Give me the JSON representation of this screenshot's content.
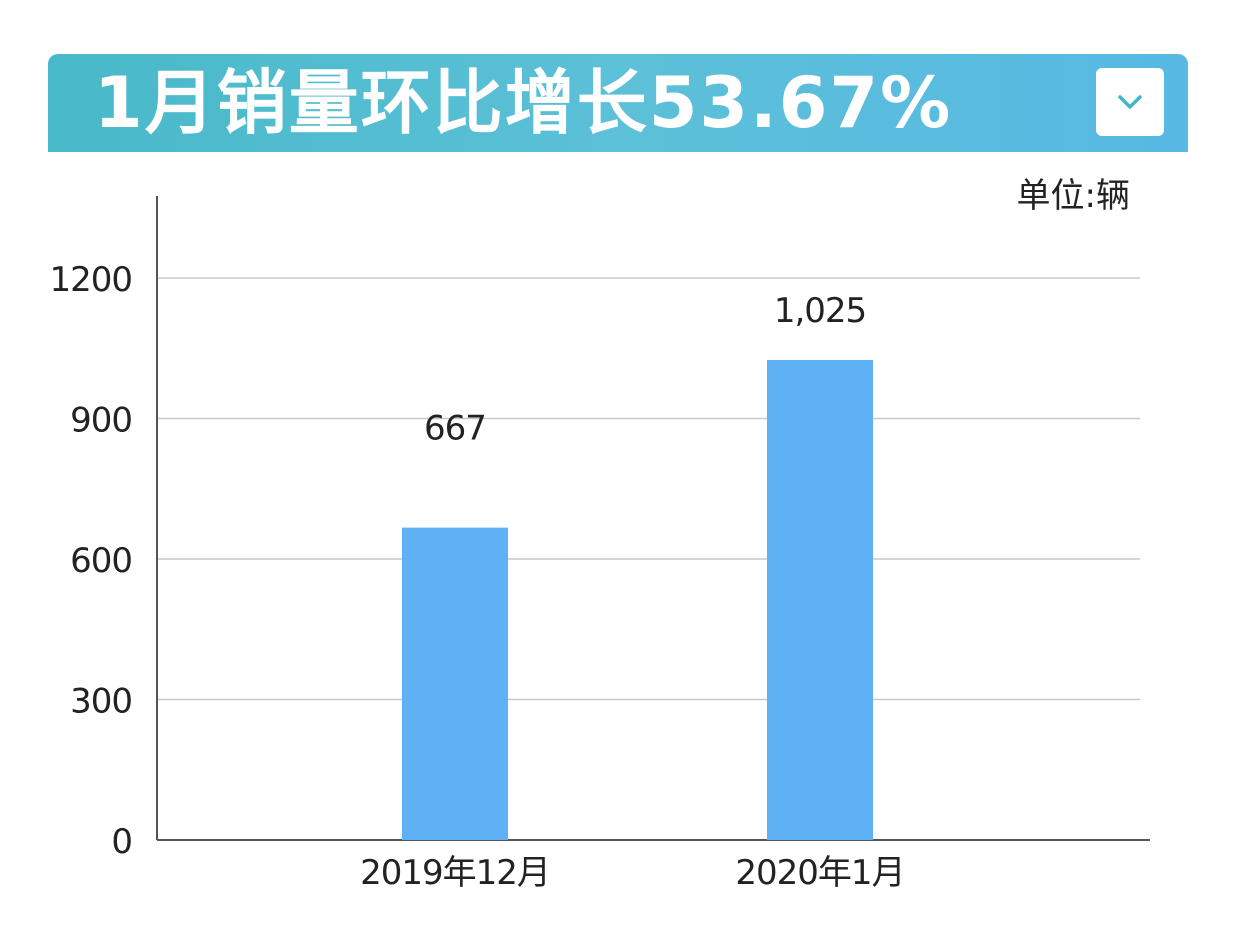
{
  "header": {
    "title": "1月销量环比增长53.67%",
    "dropdown_icon": "chevron-down-icon"
  },
  "unit_label": "单位:辆",
  "colors": {
    "banner": "#52bcd6",
    "bar": "#5eb1f5",
    "grid": "#c8c8c8",
    "axis": "#555555",
    "text": "#222222"
  },
  "chart_data": {
    "type": "bar",
    "categories": [
      "2019年12月",
      "2020年1月"
    ],
    "values": [
      667,
      1025
    ],
    "value_labels": [
      "667",
      "1,025"
    ],
    "ylim": [
      0,
      1350
    ],
    "yticks": [
      0,
      300,
      600,
      900,
      1200
    ],
    "ytick_labels": [
      "0",
      "300",
      "600",
      "900",
      "1200"
    ],
    "grid": true,
    "legend": "none"
  }
}
